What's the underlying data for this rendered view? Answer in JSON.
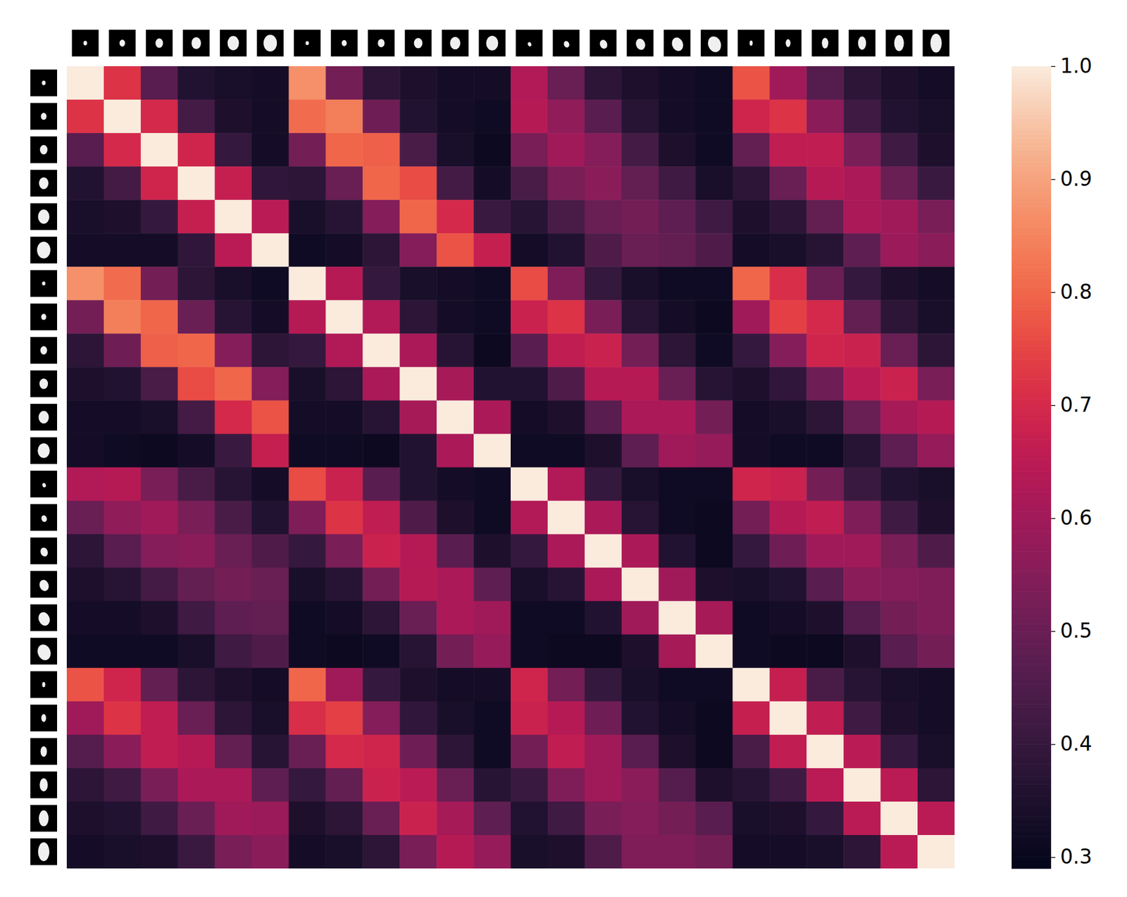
{
  "chart_data": {
    "type": "heatmap",
    "cells": [
      [
        1.0,
        0.72,
        0.47,
        0.36,
        0.34,
        0.33,
        0.87,
        0.52,
        0.38,
        0.35,
        0.33,
        0.33,
        0.63,
        0.5,
        0.38,
        0.35,
        0.33,
        0.32,
        0.77,
        0.6,
        0.46,
        0.38,
        0.35,
        0.33
      ],
      [
        0.72,
        1.0,
        0.7,
        0.43,
        0.35,
        0.33,
        0.81,
        0.84,
        0.51,
        0.36,
        0.33,
        0.32,
        0.64,
        0.57,
        0.47,
        0.37,
        0.33,
        0.32,
        0.69,
        0.72,
        0.56,
        0.42,
        0.36,
        0.34
      ],
      [
        0.47,
        0.7,
        1.0,
        0.69,
        0.4,
        0.33,
        0.52,
        0.8,
        0.79,
        0.44,
        0.34,
        0.31,
        0.53,
        0.6,
        0.55,
        0.43,
        0.35,
        0.32,
        0.49,
        0.66,
        0.66,
        0.53,
        0.42,
        0.35
      ],
      [
        0.36,
        0.43,
        0.69,
        1.0,
        0.67,
        0.39,
        0.38,
        0.5,
        0.8,
        0.76,
        0.43,
        0.33,
        0.44,
        0.53,
        0.56,
        0.49,
        0.42,
        0.34,
        0.38,
        0.5,
        0.64,
        0.62,
        0.5,
        0.41
      ],
      [
        0.34,
        0.35,
        0.4,
        0.67,
        1.0,
        0.65,
        0.34,
        0.37,
        0.55,
        0.8,
        0.7,
        0.41,
        0.37,
        0.44,
        0.5,
        0.52,
        0.48,
        0.42,
        0.35,
        0.38,
        0.49,
        0.62,
        0.6,
        0.53
      ],
      [
        0.33,
        0.33,
        0.33,
        0.39,
        0.65,
        1.0,
        0.32,
        0.33,
        0.38,
        0.55,
        0.77,
        0.67,
        0.33,
        0.36,
        0.45,
        0.5,
        0.49,
        0.45,
        0.33,
        0.34,
        0.37,
        0.48,
        0.59,
        0.56
      ],
      [
        0.87,
        0.81,
        0.52,
        0.38,
        0.34,
        0.32,
        1.0,
        0.64,
        0.4,
        0.34,
        0.33,
        0.32,
        0.76,
        0.54,
        0.4,
        0.34,
        0.32,
        0.32,
        0.8,
        0.71,
        0.5,
        0.4,
        0.35,
        0.33
      ],
      [
        0.52,
        0.84,
        0.8,
        0.5,
        0.37,
        0.33,
        0.64,
        1.0,
        0.63,
        0.38,
        0.33,
        0.32,
        0.68,
        0.72,
        0.53,
        0.37,
        0.33,
        0.31,
        0.6,
        0.74,
        0.7,
        0.49,
        0.38,
        0.34
      ],
      [
        0.38,
        0.51,
        0.79,
        0.8,
        0.55,
        0.38,
        0.4,
        0.63,
        1.0,
        0.62,
        0.37,
        0.31,
        0.47,
        0.66,
        0.68,
        0.52,
        0.38,
        0.32,
        0.4,
        0.55,
        0.69,
        0.68,
        0.5,
        0.38
      ],
      [
        0.35,
        0.36,
        0.44,
        0.76,
        0.8,
        0.55,
        0.34,
        0.38,
        0.62,
        1.0,
        0.61,
        0.36,
        0.36,
        0.45,
        0.64,
        0.64,
        0.5,
        0.37,
        0.35,
        0.39,
        0.51,
        0.65,
        0.68,
        0.53
      ],
      [
        0.33,
        0.33,
        0.34,
        0.43,
        0.7,
        0.77,
        0.33,
        0.33,
        0.37,
        0.61,
        1.0,
        0.62,
        0.33,
        0.35,
        0.47,
        0.62,
        0.62,
        0.52,
        0.33,
        0.34,
        0.38,
        0.5,
        0.61,
        0.64
      ],
      [
        0.33,
        0.32,
        0.31,
        0.33,
        0.41,
        0.67,
        0.32,
        0.32,
        0.31,
        0.36,
        0.62,
        1.0,
        0.32,
        0.32,
        0.35,
        0.48,
        0.6,
        0.58,
        0.33,
        0.32,
        0.32,
        0.37,
        0.48,
        0.58
      ],
      [
        0.63,
        0.64,
        0.53,
        0.44,
        0.37,
        0.33,
        0.76,
        0.68,
        0.47,
        0.36,
        0.33,
        0.32,
        1.0,
        0.63,
        0.4,
        0.34,
        0.32,
        0.32,
        0.69,
        0.68,
        0.52,
        0.41,
        0.36,
        0.34
      ],
      [
        0.5,
        0.57,
        0.6,
        0.53,
        0.44,
        0.36,
        0.54,
        0.72,
        0.66,
        0.45,
        0.35,
        0.32,
        0.63,
        1.0,
        0.62,
        0.37,
        0.32,
        0.31,
        0.52,
        0.64,
        0.66,
        0.54,
        0.42,
        0.35
      ],
      [
        0.38,
        0.47,
        0.55,
        0.56,
        0.5,
        0.45,
        0.4,
        0.53,
        0.68,
        0.64,
        0.47,
        0.35,
        0.4,
        0.62,
        1.0,
        0.62,
        0.36,
        0.31,
        0.4,
        0.51,
        0.6,
        0.6,
        0.53,
        0.45
      ],
      [
        0.35,
        0.37,
        0.43,
        0.49,
        0.52,
        0.5,
        0.34,
        0.37,
        0.52,
        0.64,
        0.62,
        0.48,
        0.34,
        0.37,
        0.62,
        1.0,
        0.6,
        0.35,
        0.34,
        0.36,
        0.47,
        0.56,
        0.55,
        0.54
      ],
      [
        0.33,
        0.33,
        0.35,
        0.42,
        0.48,
        0.49,
        0.32,
        0.33,
        0.38,
        0.5,
        0.62,
        0.6,
        0.32,
        0.32,
        0.36,
        0.6,
        1.0,
        0.61,
        0.32,
        0.33,
        0.35,
        0.46,
        0.52,
        0.54
      ],
      [
        0.32,
        0.32,
        0.32,
        0.34,
        0.42,
        0.45,
        0.32,
        0.31,
        0.32,
        0.37,
        0.52,
        0.58,
        0.32,
        0.31,
        0.31,
        0.35,
        0.61,
        1.0,
        0.32,
        0.31,
        0.31,
        0.35,
        0.47,
        0.52
      ],
      [
        0.77,
        0.69,
        0.49,
        0.38,
        0.35,
        0.33,
        0.8,
        0.6,
        0.4,
        0.35,
        0.33,
        0.33,
        0.69,
        0.52,
        0.4,
        0.34,
        0.32,
        0.32,
        1.0,
        0.67,
        0.44,
        0.37,
        0.34,
        0.33
      ],
      [
        0.6,
        0.72,
        0.66,
        0.5,
        0.38,
        0.34,
        0.71,
        0.74,
        0.55,
        0.39,
        0.34,
        0.32,
        0.68,
        0.64,
        0.51,
        0.36,
        0.33,
        0.31,
        0.67,
        1.0,
        0.66,
        0.42,
        0.35,
        0.33
      ],
      [
        0.46,
        0.56,
        0.66,
        0.64,
        0.49,
        0.37,
        0.5,
        0.7,
        0.69,
        0.51,
        0.38,
        0.32,
        0.52,
        0.66,
        0.6,
        0.47,
        0.35,
        0.31,
        0.44,
        0.66,
        1.0,
        0.65,
        0.4,
        0.34
      ],
      [
        0.38,
        0.42,
        0.53,
        0.62,
        0.62,
        0.48,
        0.4,
        0.49,
        0.68,
        0.65,
        0.5,
        0.37,
        0.41,
        0.54,
        0.6,
        0.56,
        0.46,
        0.35,
        0.37,
        0.42,
        0.65,
        1.0,
        0.65,
        0.38
      ],
      [
        0.35,
        0.36,
        0.42,
        0.5,
        0.6,
        0.59,
        0.35,
        0.38,
        0.5,
        0.68,
        0.61,
        0.48,
        0.36,
        0.42,
        0.53,
        0.55,
        0.52,
        0.47,
        0.34,
        0.35,
        0.4,
        0.65,
        1.0,
        0.65
      ],
      [
        0.33,
        0.34,
        0.35,
        0.41,
        0.53,
        0.56,
        0.33,
        0.34,
        0.38,
        0.53,
        0.64,
        0.58,
        0.34,
        0.35,
        0.45,
        0.54,
        0.54,
        0.52,
        0.33,
        0.33,
        0.34,
        0.38,
        0.65,
        1.0
      ]
    ],
    "colorbar": {
      "range": [
        0.29,
        1.0
      ],
      "ticks": [
        0.3,
        0.4,
        0.5,
        0.6,
        0.7,
        0.8,
        0.9,
        {
          "value": 1.0,
          "label": "1.0"
        }
      ]
    }
  }
}
